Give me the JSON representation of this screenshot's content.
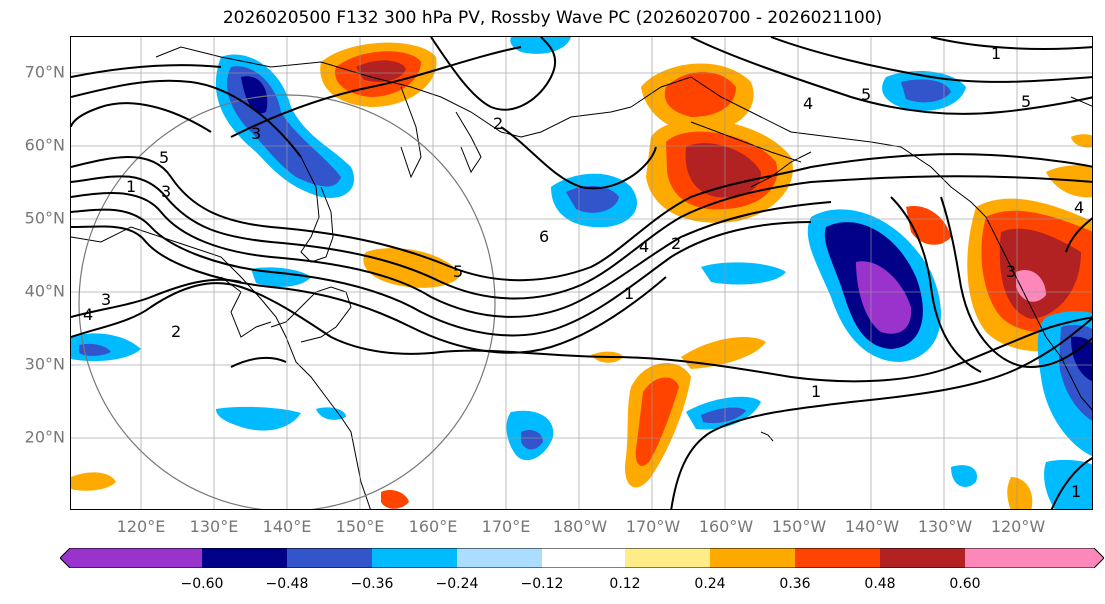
{
  "title": "2026020500 F132 300 hPa PV, Rossby Wave PC (2026020700 - 2026021100)",
  "lat_labels": [
    "70°N",
    "60°N",
    "50°N",
    "40°N",
    "30°N",
    "20°N"
  ],
  "lon_labels": [
    "120°E",
    "130°E",
    "140°E",
    "150°E",
    "160°E",
    "170°E",
    "180°W",
    "170°W",
    "160°W",
    "150°W",
    "140°W",
    "130°W",
    "120°W"
  ],
  "contour_labels": [
    "1",
    "2",
    "3",
    "4",
    "5",
    "6"
  ],
  "colorbar": {
    "colors": [
      "#9933cc",
      "#000088",
      "#3355cc",
      "#00bbff",
      "#aaddff",
      "#ffffff",
      "#ffee88",
      "#ffaa00",
      "#ff4400",
      "#b22222",
      "#ff88bb"
    ],
    "tick_labels": [
      "−0.60",
      "−0.48",
      "−0.36",
      "−0.24",
      "−0.12",
      "0.12",
      "0.24",
      "0.36",
      "0.48",
      "0.60"
    ]
  }
}
